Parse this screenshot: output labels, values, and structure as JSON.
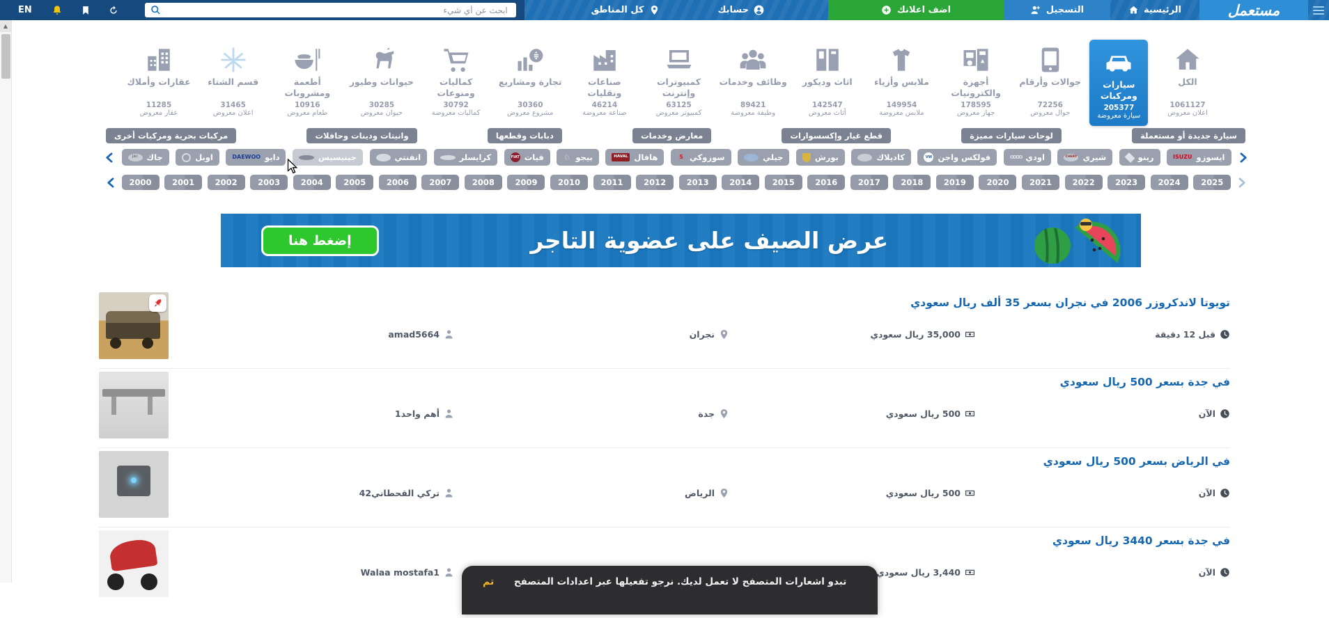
{
  "topbar": {
    "logo": "مستعمل",
    "home": "الرئيسية",
    "register": "التسجيل",
    "add_ad": "اضف اعلانك",
    "account": "حسابك",
    "regions": "كل المناطق",
    "search_placeholder": "ابحث عن أي شيء",
    "language": "EN"
  },
  "colors": {
    "topbar_blue": "#1e6fb4",
    "topbar_dark": "#16497e",
    "accent_green": "#2aa636",
    "selected_category_blue": "#1d7ac6",
    "link_blue": "#1667b1",
    "pill_slate": "#7b8292",
    "brand_pill_gray": "#9aa0ad",
    "banner_blue": "#1b79c1",
    "banner_button_green": "#2ec72e",
    "toast_action_yellow": "#f0b429"
  },
  "categories": [
    {
      "id": "all",
      "label": "الكل",
      "count": "1061127",
      "unit": "اعلان معروض",
      "icon": "home"
    },
    {
      "id": "cars",
      "label": "سيارات ومركبات",
      "count": "205377",
      "unit": "سيارة معروضة",
      "icon": "car",
      "selected": true
    },
    {
      "id": "phones",
      "label": "جوالات وأرقام",
      "count": "72256",
      "unit": "جوال معروض",
      "icon": "phone"
    },
    {
      "id": "electronics",
      "label": "أجهزة والكترونيات",
      "count": "178595",
      "unit": "جهاز معروض",
      "icon": "device"
    },
    {
      "id": "fashion",
      "label": "ملابس وأزياء",
      "count": "149954",
      "unit": "ملابس معروضة",
      "icon": "clothes"
    },
    {
      "id": "furniture",
      "label": "اثاث وديكور",
      "count": "142547",
      "unit": "أثاث معروض",
      "icon": "furniture"
    },
    {
      "id": "jobs",
      "label": "وظائف وخدمات",
      "count": "89421",
      "unit": "وظيفة معروضة",
      "icon": "jobs"
    },
    {
      "id": "computers",
      "label": "كمبيوترات وإنترنت",
      "count": "63125",
      "unit": "كمبيوتر معروض",
      "icon": "laptop"
    },
    {
      "id": "industry",
      "label": "صناعات ونقليات",
      "count": "46214",
      "unit": "صناعة معروضة",
      "icon": "industry"
    },
    {
      "id": "trade",
      "label": "تجارة ومشاريع",
      "count": "30360",
      "unit": "مشروع معروض",
      "icon": "trade"
    },
    {
      "id": "accessories",
      "label": "كماليات ومنوعات",
      "count": "30792",
      "unit": "كماليات معروضة",
      "icon": "cart"
    },
    {
      "id": "animals",
      "label": "حيوانات وطيور",
      "count": "30285",
      "unit": "حيوان معروض",
      "icon": "animals"
    },
    {
      "id": "food",
      "label": "أطعمة ومشروبات",
      "count": "10916",
      "unit": "طعام معروض",
      "icon": "food"
    },
    {
      "id": "winter",
      "label": "قسم الشتاء",
      "count": "31465",
      "unit": "اعلان معروض",
      "icon": "snow",
      "icon_color": "#bcd9ee"
    },
    {
      "id": "realestate",
      "label": "عقارات وأملاك",
      "count": "11285",
      "unit": "عقار معروض",
      "icon": "building"
    }
  ],
  "subcategories": [
    "سيارة جديدة أو مستعملة",
    "لوحات سيارات مميزة",
    "قطع غيار وإكسسوارات",
    "معارض وخدمات",
    "دبابات وقطعها",
    "وانيتات ودينات وحافلات",
    "مركبات بحرية ومركبات أخرى"
  ],
  "brands": [
    {
      "id": "isuzu",
      "label": "ايسوزو",
      "logo": {
        "type": "text",
        "text": "ISUZU",
        "fg": "#d6001c"
      }
    },
    {
      "id": "renault",
      "label": "رينو",
      "logo": {
        "type": "diamond",
        "bg": "#dfe3ea"
      }
    },
    {
      "id": "chery",
      "label": "شيري",
      "logo": {
        "type": "oval",
        "bg": "#c7ccd5",
        "text": "CHERY",
        "fg": "#8c2b2b"
      }
    },
    {
      "id": "audi",
      "label": "اودي",
      "logo": {
        "type": "rings",
        "text": "oooo"
      }
    },
    {
      "id": "volkswagen",
      "label": "فولكس واجن",
      "logo": {
        "type": "circle",
        "bg": "#ffffff",
        "text": "VW",
        "fg": "#1b5fae"
      }
    },
    {
      "id": "cadillac",
      "label": "كاديلاك",
      "logo": {
        "type": "oval",
        "bg": "#c9cdd6"
      }
    },
    {
      "id": "porsche",
      "label": "بورش",
      "logo": {
        "type": "shield",
        "bg": "#d8b542"
      }
    },
    {
      "id": "geely",
      "label": "جيلي",
      "logo": {
        "type": "oval",
        "bg": "#9db6d8"
      }
    },
    {
      "id": "suzuki",
      "label": "سوزوكي",
      "logo": {
        "type": "text",
        "text": "S",
        "fg": "#e0162b"
      }
    },
    {
      "id": "haval",
      "label": "هافال",
      "logo": {
        "type": "badge",
        "bg": "#8f1d22",
        "text": "HAVAL",
        "fg": "#ffffff"
      }
    },
    {
      "id": "peugeot",
      "label": "بيجو",
      "logo": {
        "type": "glyph",
        "text": "♘",
        "fg": "#e7eaf0"
      }
    },
    {
      "id": "fiat",
      "label": "فيات",
      "logo": {
        "type": "circle",
        "bg": "#8c1e2d",
        "text": "FIAT",
        "fg": "#ffffff"
      }
    },
    {
      "id": "chrysler",
      "label": "كرايسلر",
      "logo": {
        "type": "wings",
        "bg": "#d5d9e0"
      }
    },
    {
      "id": "infiniti",
      "label": "انفنتي",
      "logo": {
        "type": "oval",
        "bg": "#d5d9e0"
      }
    },
    {
      "id": "genesis",
      "label": "جينيسيس",
      "logo": {
        "type": "wings",
        "bg": "#858c99"
      },
      "hover": true
    },
    {
      "id": "daewoo",
      "label": "دايو",
      "logo": {
        "type": "text",
        "text": "DAEWOO",
        "fg": "#1c3f94"
      }
    },
    {
      "id": "opel",
      "label": "اوبل",
      "logo": {
        "type": "outline"
      }
    },
    {
      "id": "jac",
      "label": "جاك",
      "logo": {
        "type": "oval",
        "bg": "#c9cdd6",
        "text": "JAC",
        "fg": "#777777"
      }
    }
  ],
  "years": [
    "2000",
    "2001",
    "2002",
    "2003",
    "2004",
    "2005",
    "2006",
    "2007",
    "2008",
    "2009",
    "2010",
    "2011",
    "2012",
    "2013",
    "2014",
    "2015",
    "2016",
    "2017",
    "2018",
    "2019",
    "2020",
    "2021",
    "2022",
    "2023",
    "2024",
    "2025"
  ],
  "banner": {
    "title": "عرض الصيف على عضوية التاجر",
    "button": "إضغط هنا"
  },
  "listings": [
    {
      "title": "تويوتا لاندكروزر 2006 في نجران بسعر 35 ألف ريال سعودي",
      "price": "35,000 ريال سعودي",
      "location": "نجران",
      "user": "amad5664",
      "time": "قبل 12 دقيقة",
      "thumb": "suv",
      "promoted": true
    },
    {
      "title": "في جدة بسعر 500 ريال سعودي",
      "price": "500 ريال سعودي",
      "location": "جدة",
      "user": "أهم واحد1",
      "time": "الآن",
      "thumb": "rack"
    },
    {
      "title": "في الرياض بسعر 500 ريال سعودي",
      "price": "500 ريال سعودي",
      "location": "الرياض",
      "user": "تركي القحطاني42",
      "time": "الآن",
      "thumb": "machine"
    },
    {
      "title": "في جدة بسعر 3440 ريال سعودي",
      "price": "3,440 ريال سعودي",
      "location": "",
      "user": "Walaa mostafa1",
      "time": "الآن",
      "thumb": "bike"
    }
  ],
  "toast": {
    "message": "تبدو اشعارات المتصفح لا تعمل لديك. نرجو تفعيلها عبر اعدادات المتصفح",
    "action": "تم"
  }
}
